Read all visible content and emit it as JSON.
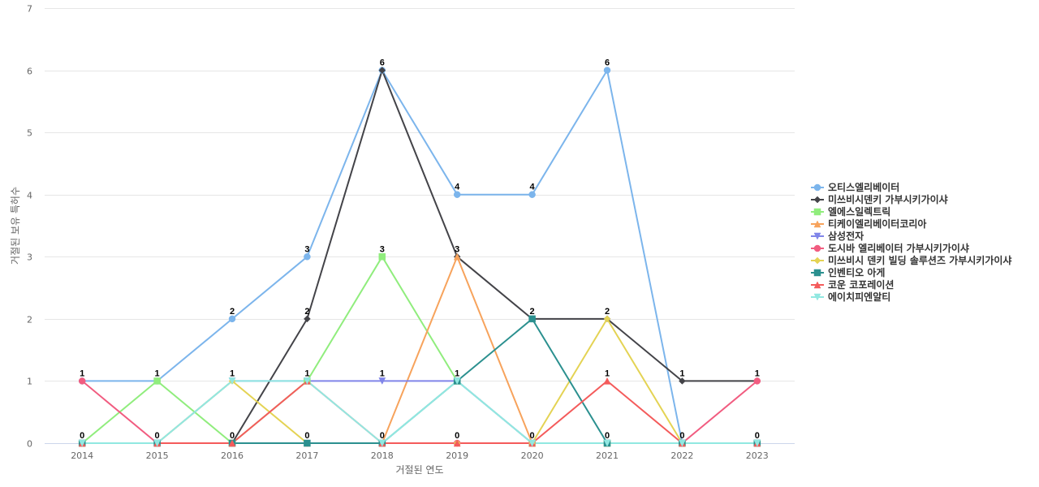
{
  "chart_data": {
    "type": "line",
    "title": "",
    "xlabel": "거절된 연도",
    "ylabel": "거절된 보유 특허수",
    "x": [
      2014,
      2015,
      2016,
      2017,
      2018,
      2019,
      2020,
      2021,
      2022,
      2023
    ],
    "ylim": [
      0,
      7
    ],
    "yticks": [
      0,
      1,
      2,
      3,
      4,
      5,
      6,
      7
    ],
    "grid": true,
    "legend_position": "right",
    "series": [
      {
        "name": "오티스엘리베이터",
        "color": "#7cb5ec",
        "marker": "circle",
        "values": [
          1,
          1,
          2,
          3,
          6,
          4,
          4,
          6,
          0,
          0
        ]
      },
      {
        "name": "미쓰비시덴키 가부시키가이샤",
        "color": "#434348",
        "marker": "diamond",
        "values": [
          0,
          0,
          0,
          2,
          6,
          3,
          2,
          2,
          1,
          1
        ]
      },
      {
        "name": "엘에스일렉트릭",
        "color": "#90ed7d",
        "marker": "square",
        "values": [
          0,
          1,
          0,
          1,
          3,
          1,
          0,
          0,
          0,
          0
        ]
      },
      {
        "name": "티케이엘리베이터코리아",
        "color": "#f7a35c",
        "marker": "triangle",
        "values": [
          0,
          0,
          0,
          0,
          0,
          3,
          0,
          0,
          0,
          0
        ]
      },
      {
        "name": "삼성전자",
        "color": "#8085e9",
        "marker": "triangle-down",
        "values": [
          0,
          0,
          1,
          1,
          1,
          1,
          0,
          0,
          0,
          0
        ]
      },
      {
        "name": "도시바 엘리베이터 가부시키가이샤",
        "color": "#f15c80",
        "marker": "circle",
        "values": [
          1,
          0,
          0,
          0,
          0,
          0,
          0,
          0,
          0,
          1
        ]
      },
      {
        "name": "미쓰비시 덴키 빌딩 솔루션즈 가부시키가이샤",
        "color": "#e4d354",
        "marker": "diamond",
        "values": [
          0,
          0,
          1,
          0,
          0,
          0,
          0,
          2,
          0,
          0
        ]
      },
      {
        "name": "인벤티오 아게",
        "color": "#2b908f",
        "marker": "square",
        "values": [
          0,
          0,
          0,
          0,
          0,
          1,
          2,
          0,
          0,
          0
        ]
      },
      {
        "name": "코운 코포레이션",
        "color": "#f45b5b",
        "marker": "triangle",
        "values": [
          0,
          0,
          0,
          1,
          0,
          0,
          0,
          1,
          0,
          0
        ]
      },
      {
        "name": "에이치피엔알티",
        "color": "#91e8e1",
        "marker": "triangle-down",
        "values": [
          0,
          0,
          1,
          1,
          0,
          1,
          0,
          0,
          0,
          0
        ]
      }
    ],
    "data_labels": [
      {
        "x": 2014,
        "value": 1,
        "series": 0
      },
      {
        "x": 2014,
        "value": 0,
        "series": 2
      },
      {
        "x": 2015,
        "value": 1,
        "series": 0
      },
      {
        "x": 2015,
        "value": 0,
        "series": 1
      },
      {
        "x": 2016,
        "value": 2,
        "series": 0
      },
      {
        "x": 2016,
        "value": 1,
        "series": 4
      },
      {
        "x": 2016,
        "value": 0,
        "series": 1
      },
      {
        "x": 2017,
        "value": 3,
        "series": 0
      },
      {
        "x": 2017,
        "value": 2,
        "series": 1
      },
      {
        "x": 2017,
        "value": 1,
        "series": 4
      },
      {
        "x": 2017,
        "value": 0,
        "series": 3
      },
      {
        "x": 2018,
        "value": 6,
        "series": 1
      },
      {
        "x": 2018,
        "value": 3,
        "series": 2
      },
      {
        "x": 2018,
        "value": 1,
        "series": 4
      },
      {
        "x": 2018,
        "value": 0,
        "series": 3
      },
      {
        "x": 2019,
        "value": 4,
        "series": 0
      },
      {
        "x": 2019,
        "value": 3,
        "series": 3
      },
      {
        "x": 2019,
        "value": 1,
        "series": 4
      },
      {
        "x": 2019,
        "value": 0,
        "series": 5
      },
      {
        "x": 2020,
        "value": 4,
        "series": 0
      },
      {
        "x": 2020,
        "value": 2,
        "series": 7
      },
      {
        "x": 2020,
        "value": 0,
        "series": 3
      },
      {
        "x": 2021,
        "value": 6,
        "series": 0
      },
      {
        "x": 2021,
        "value": 2,
        "series": 1
      },
      {
        "x": 2021,
        "value": 1,
        "series": 8
      },
      {
        "x": 2021,
        "value": 0,
        "series": 7
      },
      {
        "x": 2022,
        "value": 1,
        "series": 1
      },
      {
        "x": 2022,
        "value": 0,
        "series": 0
      },
      {
        "x": 2023,
        "value": 1,
        "series": 1
      },
      {
        "x": 2023,
        "value": 0,
        "series": 0
      }
    ]
  }
}
